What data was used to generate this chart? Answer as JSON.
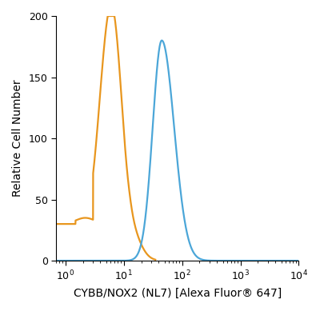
{
  "title": "",
  "xlabel": "CYBB/NOX2 (NL7) [Alexa Fluor® 647]",
  "ylabel": "Relative Cell Number",
  "xlim": [
    0.7,
    10000
  ],
  "ylim": [
    0,
    200
  ],
  "yticks": [
    0,
    50,
    100,
    150,
    200
  ],
  "orange_color": "#E8961E",
  "blue_color": "#4BA6D8",
  "background_color": "#FFFFFF",
  "linewidth": 1.6
}
